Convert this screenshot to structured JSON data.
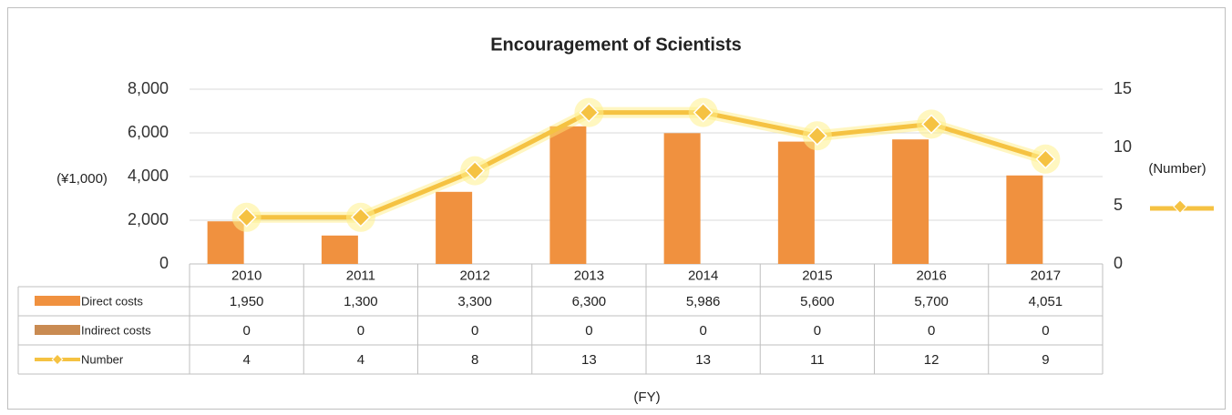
{
  "chart_data": {
    "type": "bar",
    "title": "Encouragement of Scientists",
    "y_axis_label": "(¥1,000)",
    "y2_axis_label": "(Number)",
    "x_axis_label": "(FY)",
    "categories": [
      "2010",
      "2011",
      "2012",
      "2013",
      "2014",
      "2015",
      "2016",
      "2017"
    ],
    "series": [
      {
        "name": "Direct costs",
        "color": "#f0913f",
        "values": [
          1950,
          1300,
          3300,
          6300,
          5986,
          5600,
          5700,
          4051
        ],
        "value_labels": [
          "1,950",
          "1,300",
          "3,300",
          "6,300",
          "5,986",
          "5,600",
          "5,700",
          "4,051"
        ]
      },
      {
        "name": "Indirect costs",
        "color": "#c98b52",
        "values": [
          0,
          0,
          0,
          0,
          0,
          0,
          0,
          0
        ]
      },
      {
        "name": "Number",
        "type": "line",
        "axis": "y2",
        "color": "#f5c242",
        "values": [
          4,
          4,
          8,
          13,
          13,
          11,
          12,
          9
        ]
      }
    ],
    "ylim": [
      0,
      8000
    ],
    "yticks": [
      0,
      {
        "value": 2000,
        "label": "2,000"
      },
      {
        "value": 4000,
        "label": "4,000"
      },
      {
        "value": 6000,
        "label": "6,000"
      },
      {
        "value": 8000,
        "label": "8,000"
      }
    ],
    "y2lim": [
      0,
      15
    ],
    "y2ticks": [
      0,
      5,
      10,
      15
    ],
    "grid": true
  }
}
